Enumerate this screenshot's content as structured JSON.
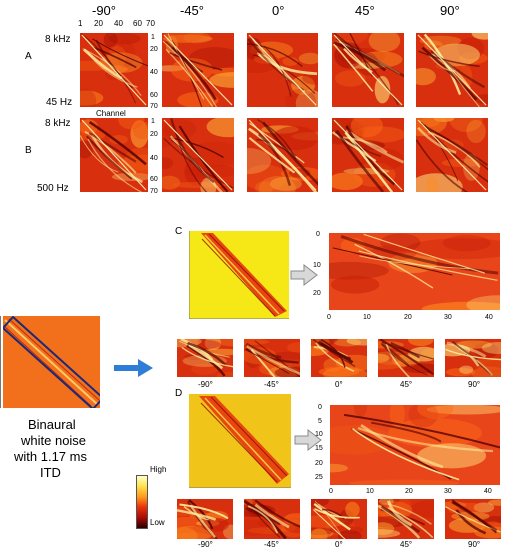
{
  "angles": [
    "-90°",
    "-45°",
    "0°",
    "45°",
    "90°"
  ],
  "row_a": {
    "label": "A",
    "freq_top": "8 kHz",
    "freq_bottom": "45 Hz"
  },
  "row_b": {
    "label": "B",
    "freq_top": "8 kHz",
    "freq_bottom": "500 Hz"
  },
  "channel_label": "Channel",
  "top_ticks": [
    "1",
    "20",
    "40",
    "60",
    "70"
  ],
  "side_ticks": [
    "1",
    "20",
    "40",
    "60",
    "70"
  ],
  "panel_c": {
    "label": "C",
    "y_ticks": [
      "0",
      "10",
      "20"
    ],
    "x_ticks": [
      "0",
      "10",
      "20",
      "30",
      "40"
    ]
  },
  "panel_d": {
    "label": "D",
    "y_ticks": [
      "0",
      "5",
      "10",
      "15",
      "20",
      "25"
    ],
    "x_ticks": [
      "0",
      "10",
      "20",
      "30",
      "40"
    ]
  },
  "noise_caption": [
    "Binaural",
    "white noise",
    "with 1.17 ms",
    "ITD"
  ],
  "colorbar": {
    "high": "High",
    "low": "Low",
    "colors": [
      "#ffffd0",
      "#ffe14a",
      "#ff9a1a",
      "#e8320a",
      "#a80d05",
      "#2a0000"
    ]
  },
  "colors": {
    "panel_base": "#d72c0c",
    "noise_bg": "#f2701c",
    "rect_outline": "#1a2a78",
    "arrow_blue": "#2e7dd6",
    "yellow_bg": "#f6e817",
    "gold_bg": "#f0c419"
  }
}
